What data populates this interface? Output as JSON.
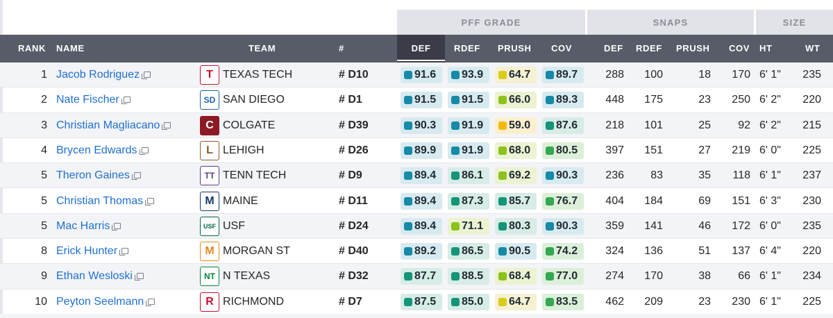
{
  "groups": {
    "pff_grade": "PFF GRADE",
    "snaps": "SNAPS",
    "size": "SIZE"
  },
  "headers": {
    "rank": "RANK",
    "name": "NAME",
    "team": "TEAM",
    "pos": "#",
    "def": "DEF",
    "rdef": "RDEF",
    "prush": "PRUSH",
    "cov": "COV",
    "s_def": "DEF",
    "s_rdef": "RDEF",
    "s_prush": "PRUSH",
    "s_cov": "COV",
    "ht": "HT",
    "wt": "WT"
  },
  "colors": {
    "blue_bg": "#d7eaf0",
    "blue_dot": "#168aa6",
    "teal_bg": "#d7ece6",
    "teal_dot": "#159478",
    "green_bg": "#dcefd9",
    "green_dot": "#34a853",
    "lime_bg": "#ebf3d3",
    "lime_dot": "#8cc21b",
    "yellow_bg": "#f5f1d2",
    "yellow_dot": "#d9cd1a",
    "gold_bg": "#fbefcf",
    "gold_dot": "#f2b90f"
  },
  "players": [
    {
      "rank": "1",
      "name": "Jacob Rodriguez",
      "team": "TEXAS TECH",
      "logo_icon": "texas-tech-logo",
      "logo_text": "T",
      "logo_bg": "#ffffff",
      "logo_fg": "#c8102e",
      "pos": "# D10",
      "grades": [
        {
          "v": "91.6",
          "c": "blue"
        },
        {
          "v": "93.9",
          "c": "blue"
        },
        {
          "v": "64.7",
          "c": "yellow"
        },
        {
          "v": "89.7",
          "c": "blue"
        }
      ],
      "snaps": [
        "288",
        "100",
        "18",
        "170"
      ],
      "ht": "6' 1\"",
      "wt": "235"
    },
    {
      "rank": "2",
      "name": "Nate Fischer",
      "team": "SAN DIEGO",
      "logo_icon": "san-diego-logo",
      "logo_text": "SD",
      "logo_bg": "#ffffff",
      "logo_fg": "#1f62a8",
      "pos": "# D1",
      "grades": [
        {
          "v": "91.5",
          "c": "blue"
        },
        {
          "v": "91.5",
          "c": "blue"
        },
        {
          "v": "66.0",
          "c": "lime"
        },
        {
          "v": "89.3",
          "c": "blue"
        }
      ],
      "snaps": [
        "448",
        "175",
        "23",
        "250"
      ],
      "ht": "6' 2\"",
      "wt": "220"
    },
    {
      "rank": "3",
      "name": "Christian Magliacano",
      "team": "COLGATE",
      "logo_icon": "colgate-logo",
      "logo_text": "C",
      "logo_bg": "#8c1a24",
      "logo_fg": "#ffffff",
      "pos": "# D39",
      "grades": [
        {
          "v": "90.3",
          "c": "blue"
        },
        {
          "v": "91.9",
          "c": "blue"
        },
        {
          "v": "59.0",
          "c": "gold"
        },
        {
          "v": "87.6",
          "c": "teal"
        }
      ],
      "snaps": [
        "218",
        "101",
        "25",
        "92"
      ],
      "ht": "6' 2\"",
      "wt": "215"
    },
    {
      "rank": "4",
      "name": "Brycen Edwards",
      "team": "LEHIGH",
      "logo_icon": "lehigh-logo",
      "logo_text": "L",
      "logo_bg": "#ffffff",
      "logo_fg": "#8a5a2b",
      "pos": "# D26",
      "grades": [
        {
          "v": "89.9",
          "c": "blue"
        },
        {
          "v": "91.9",
          "c": "blue"
        },
        {
          "v": "68.0",
          "c": "lime"
        },
        {
          "v": "80.5",
          "c": "green"
        }
      ],
      "snaps": [
        "397",
        "151",
        "27",
        "219"
      ],
      "ht": "6' 0\"",
      "wt": "225"
    },
    {
      "rank": "5",
      "name": "Theron Gaines",
      "team": "TENN TECH",
      "logo_icon": "tenn-tech-logo",
      "logo_text": "TT",
      "logo_bg": "#ffffff",
      "logo_fg": "#5b3a8c",
      "pos": "# D9",
      "grades": [
        {
          "v": "89.4",
          "c": "blue"
        },
        {
          "v": "86.1",
          "c": "teal"
        },
        {
          "v": "69.2",
          "c": "lime"
        },
        {
          "v": "90.3",
          "c": "blue"
        }
      ],
      "snaps": [
        "236",
        "83",
        "35",
        "118"
      ],
      "ht": "6' 1\"",
      "wt": "237"
    },
    {
      "rank": "5",
      "name": "Christian Thomas",
      "team": "MAINE",
      "logo_icon": "maine-logo",
      "logo_text": "M",
      "logo_bg": "#ffffff",
      "logo_fg": "#163a6b",
      "pos": "# D11",
      "grades": [
        {
          "v": "89.4",
          "c": "blue"
        },
        {
          "v": "87.3",
          "c": "teal"
        },
        {
          "v": "85.7",
          "c": "teal"
        },
        {
          "v": "76.7",
          "c": "green"
        }
      ],
      "snaps": [
        "404",
        "184",
        "69",
        "151"
      ],
      "ht": "6' 3\"",
      "wt": "230"
    },
    {
      "rank": "5",
      "name": "Mac Harris",
      "team": "USF",
      "logo_icon": "usf-logo",
      "logo_text": "USF",
      "logo_bg": "#ffffff",
      "logo_fg": "#006747",
      "pos": "# D24",
      "grades": [
        {
          "v": "89.4",
          "c": "blue"
        },
        {
          "v": "71.1",
          "c": "lime"
        },
        {
          "v": "80.3",
          "c": "teal"
        },
        {
          "v": "90.3",
          "c": "blue"
        }
      ],
      "snaps": [
        "359",
        "141",
        "46",
        "172"
      ],
      "ht": "6' 0\"",
      "wt": "235"
    },
    {
      "rank": "8",
      "name": "Erick Hunter",
      "team": "MORGAN ST",
      "logo_icon": "morgan-state-logo",
      "logo_text": "M",
      "logo_bg": "#ffffff",
      "logo_fg": "#e08a1e",
      "pos": "# D40",
      "grades": [
        {
          "v": "89.2",
          "c": "blue"
        },
        {
          "v": "86.5",
          "c": "teal"
        },
        {
          "v": "90.5",
          "c": "blue"
        },
        {
          "v": "74.2",
          "c": "green"
        }
      ],
      "snaps": [
        "324",
        "136",
        "51",
        "137"
      ],
      "ht": "6' 4\"",
      "wt": "220"
    },
    {
      "rank": "9",
      "name": "Ethan Wesloski",
      "team": "N TEXAS",
      "logo_icon": "north-texas-logo",
      "logo_text": "NT",
      "logo_bg": "#ffffff",
      "logo_fg": "#00853e",
      "pos": "# D32",
      "grades": [
        {
          "v": "87.7",
          "c": "teal"
        },
        {
          "v": "88.5",
          "c": "teal"
        },
        {
          "v": "68.4",
          "c": "lime"
        },
        {
          "v": "77.0",
          "c": "green"
        }
      ],
      "snaps": [
        "274",
        "170",
        "38",
        "66"
      ],
      "ht": "6' 1\"",
      "wt": "234"
    },
    {
      "rank": "10",
      "name": "Peyton Seelmann",
      "team": "RICHMOND",
      "logo_icon": "richmond-logo",
      "logo_text": "R",
      "logo_bg": "#ffffff",
      "logo_fg": "#c8102e",
      "pos": "# D7",
      "grades": [
        {
          "v": "87.5",
          "c": "teal"
        },
        {
          "v": "85.0",
          "c": "teal"
        },
        {
          "v": "64.7",
          "c": "yellow"
        },
        {
          "v": "83.5",
          "c": "green"
        }
      ],
      "snaps": [
        "462",
        "209",
        "23",
        "230"
      ],
      "ht": "6' 1\"",
      "wt": "225"
    }
  ]
}
